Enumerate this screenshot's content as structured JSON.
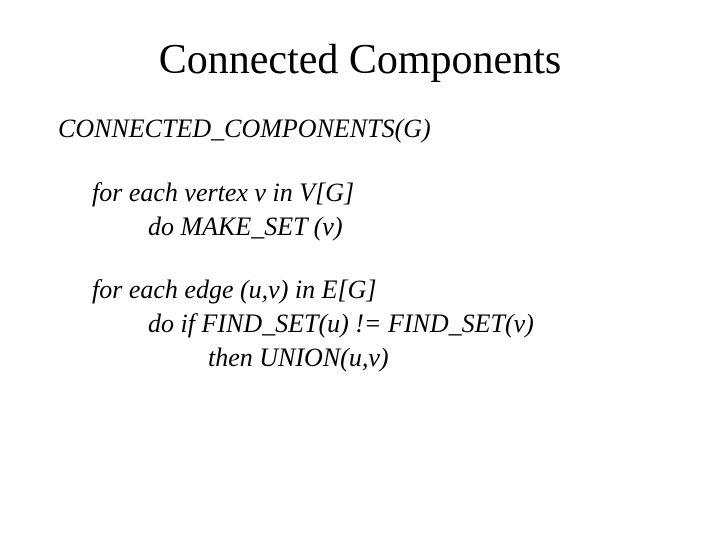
{
  "title": "Connected Components",
  "proc_header": "CONNECTED_COMPONENTS(G)",
  "block1": {
    "line1": "for each vertex v in V[G]",
    "line2": "do MAKE_SET (v)"
  },
  "block2": {
    "line1": "for each edge (u,v) in E[G]",
    "line2": "do if FIND_SET(u) != FIND_SET(v)",
    "line3": "then UNION(u,v)"
  },
  "colors": {
    "background": "#ffffff",
    "text": "#000000"
  },
  "fonts": {
    "title_size_pt": 42,
    "body_size_pt": 26,
    "family": "Times New Roman",
    "body_style": "italic"
  }
}
